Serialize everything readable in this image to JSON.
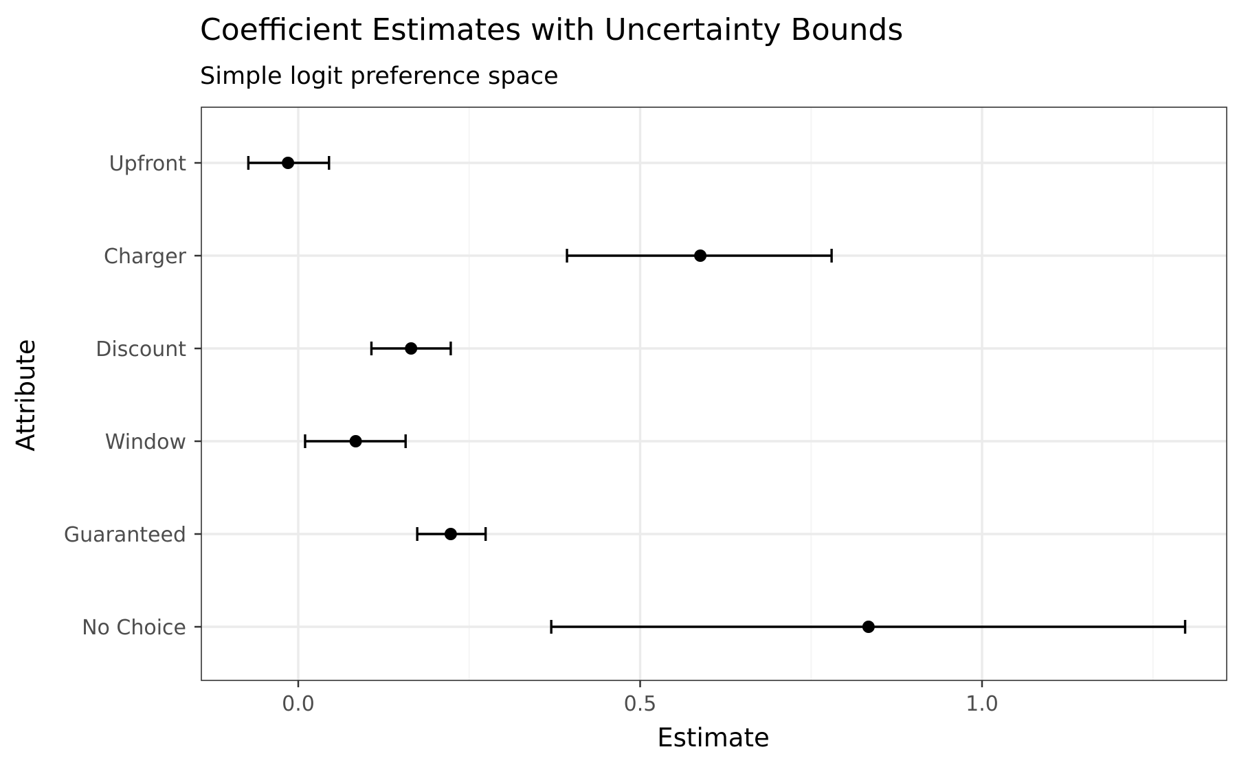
{
  "chart_data": {
    "type": "scatter",
    "subtype": "point-with-error-bars",
    "title": "Coefficient Estimates with Uncertainty Bounds",
    "subtitle": "Simple logit preference space",
    "xlabel": "Estimate",
    "ylabel": "Attribute",
    "xlim": [
      -0.14,
      1.36
    ],
    "x_ticks": [
      0.0,
      0.5,
      1.0
    ],
    "x_tick_labels": [
      "0.0",
      "0.5",
      "1.0"
    ],
    "grid": true,
    "categories": [
      "Upfront",
      "Charger",
      "Discount",
      "Window",
      "Guaranteed",
      "No Choice"
    ],
    "series": [
      {
        "estimates": [
          -0.015,
          0.588,
          0.165,
          0.084,
          0.223,
          0.834
        ],
        "lower": [
          -0.073,
          0.393,
          0.107,
          0.01,
          0.174,
          0.37
        ],
        "upper": [
          0.045,
          0.78,
          0.223,
          0.157,
          0.274,
          1.297
        ]
      }
    ],
    "colors": {
      "point": "#000000",
      "errorbar": "#000000",
      "grid_major": "#ebebeb",
      "grid_minor": "#f5f5f5",
      "panel_border": "#333333"
    }
  }
}
